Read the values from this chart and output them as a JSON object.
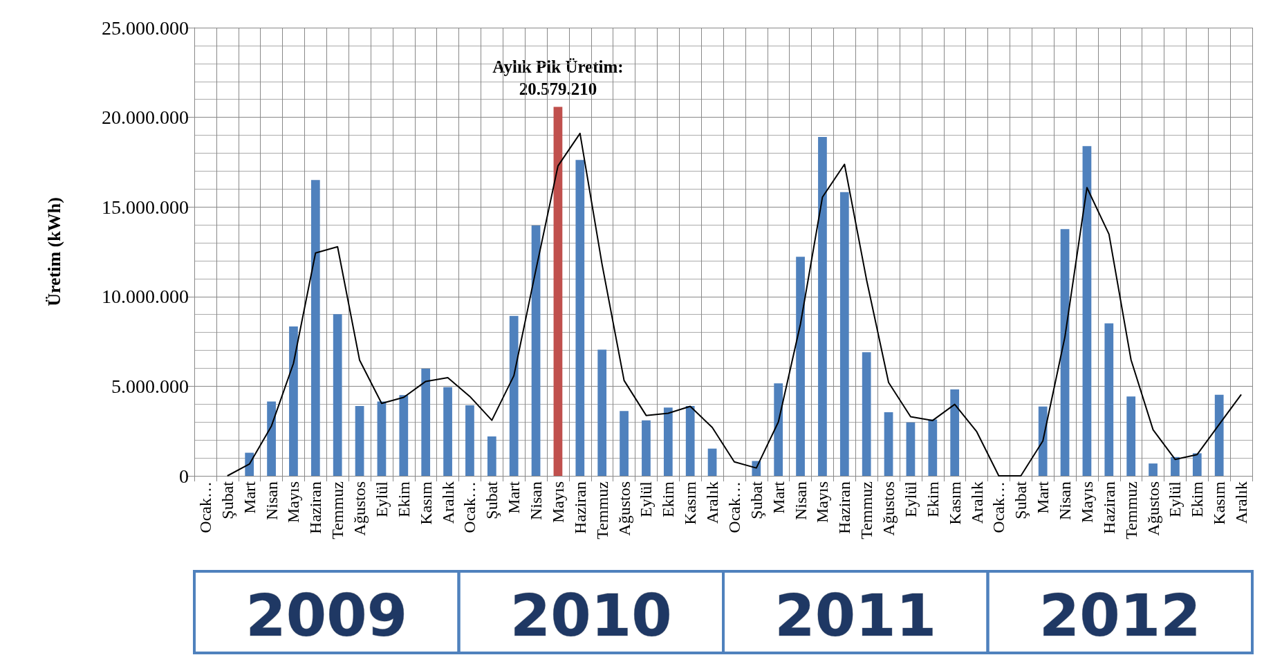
{
  "chart_data": {
    "type": "bar",
    "ylabel": "Üretim (kWh)",
    "categories": [
      "Ocak…",
      "Şubat",
      "Mart",
      "Nisan",
      "Mayıs",
      "Haziran",
      "Temmuz",
      "Ağustos",
      "Eylül",
      "Ekim",
      "Kasım",
      "Aralık",
      "Ocak…",
      "Şubat",
      "Mart",
      "Nisan",
      "Mayıs",
      "Haziran",
      "Temmuz",
      "Ağustos",
      "Eylül",
      "Ekim",
      "Kasım",
      "Aralık",
      "Ocak…",
      "Şubat",
      "Mart",
      "Nisan",
      "Mayıs",
      "Haziran",
      "Temmuz",
      "Ağustos",
      "Eylül",
      "Ekim",
      "Kasım",
      "Aralık",
      "Ocak…",
      "Şubat",
      "Mart",
      "Nisan",
      "Mayıs",
      "Haziran",
      "Temmuz",
      "Ağustos",
      "Eylül",
      "Ekim",
      "Kasım",
      "Aralık"
    ],
    "series": [
      {
        "colors": [
          "#4f81bd",
          "#4f81bd",
          "#4f81bd",
          "#4f81bd",
          "#4f81bd",
          "#4f81bd",
          "#4f81bd",
          "#4f81bd",
          "#4f81bd",
          "#4f81bd",
          "#4f81bd",
          "#4f81bd",
          "#4f81bd",
          "#4f81bd",
          "#4f81bd",
          "#4f81bd",
          "#c0504d",
          "#4f81bd",
          "#4f81bd",
          "#4f81bd",
          "#4f81bd",
          "#4f81bd",
          "#4f81bd",
          "#4f81bd",
          "#4f81bd",
          "#4f81bd",
          "#4f81bd",
          "#4f81bd",
          "#4f81bd",
          "#4f81bd",
          "#4f81bd",
          "#4f81bd",
          "#4f81bd",
          "#4f81bd",
          "#4f81bd",
          "#4f81bd",
          "#4f81bd",
          "#4f81bd",
          "#4f81bd",
          "#4f81bd",
          "#4f81bd",
          "#4f81bd",
          "#4f81bd",
          "#4f81bd",
          "#4f81bd",
          "#4f81bd",
          "#4f81bd",
          "#4f81bd"
        ],
        "values": [
          null,
          null,
          1290000,
          4150000,
          8330000,
          16500000,
          9020000,
          3900000,
          4150000,
          4500000,
          5980000,
          4950000,
          3940000,
          2200000,
          8920000,
          13970000,
          20579210,
          17620000,
          7040000,
          3620000,
          3100000,
          3810000,
          3900000,
          1520000,
          null,
          830000,
          5160000,
          12220000,
          18900000,
          15830000,
          6900000,
          3550000,
          2980000,
          3140000,
          4820000,
          null,
          null,
          null,
          3870000,
          13760000,
          18390000,
          8510000,
          4430000,
          690000,
          1050000,
          1260000,
          4520000,
          null
        ]
      },
      {
        "type": "line",
        "color": "#000000",
        "values": [
          null,
          0,
          660000,
          2780000,
          6280000,
          12430000,
          12780000,
          6450000,
          4040000,
          4380000,
          5270000,
          5480000,
          4430000,
          3100000,
          5590000,
          11500000,
          17290000,
          19100000,
          11800000,
          5320000,
          3370000,
          3490000,
          3880000,
          2700000,
          780000,
          440000,
          3010000,
          8460000,
          15550000,
          17380000,
          10940000,
          5210000,
          3300000,
          3090000,
          3990000,
          2460000,
          0,
          0,
          1950000,
          7750000,
          16080000,
          13480000,
          6470000,
          2570000,
          920000,
          1190000,
          2870000,
          4540000
        ]
      }
    ],
    "ylim": [
      0,
      25000000
    ],
    "yticks": [
      {
        "value": 0,
        "label": "0"
      },
      {
        "value": 5000000,
        "label": "5.000.000"
      },
      {
        "value": 10000000,
        "label": "10.000.000"
      },
      {
        "value": 15000000,
        "label": "15.000.000"
      },
      {
        "value": 20000000,
        "label": "20.000.000"
      },
      {
        "value": 25000000,
        "label": "25.000.000"
      }
    ],
    "grid": true,
    "marker": "none",
    "line_style": "solid",
    "annotations": [
      "Aylık Pik Üretim:\n20.579.210",
      "2009",
      "2010",
      "2011",
      "2012"
    ]
  }
}
